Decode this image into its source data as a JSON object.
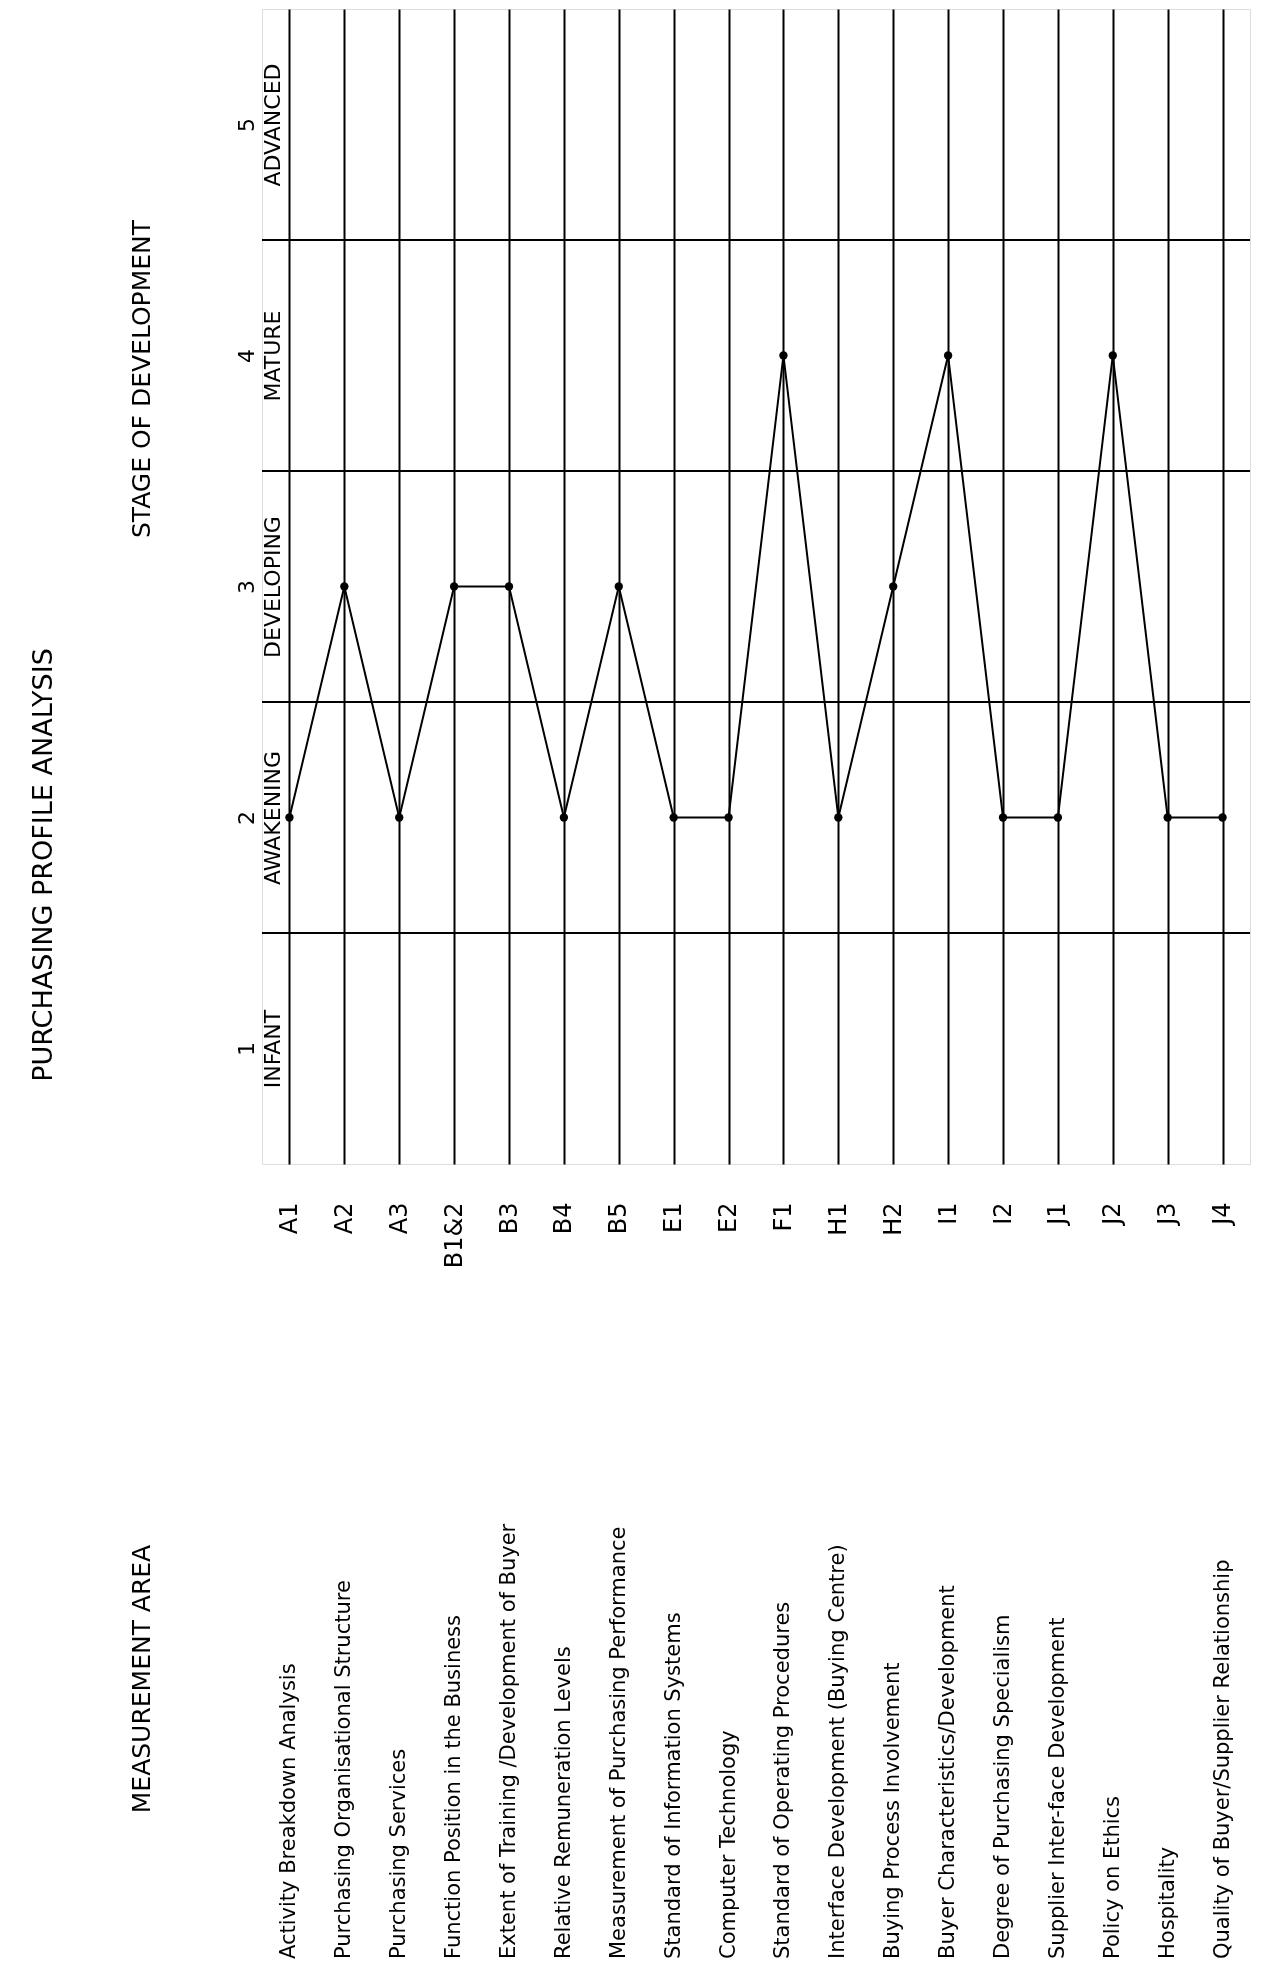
{
  "chart_data": {
    "type": "line",
    "title": "PURCHASING PROFILE ANALYSIS",
    "ylabel": "STAGE OF DEVELOPMENT",
    "categories": [
      "A1",
      "A2",
      "A3",
      "B1&2",
      "B3",
      "B4",
      "B5",
      "E1",
      "E2",
      "F1",
      "H1",
      "H2",
      "I1",
      "I2",
      "J1",
      "J2",
      "J3",
      "J4"
    ],
    "series": [
      {
        "color": "#000000",
        "values": [
          2,
          3,
          2,
          3,
          3,
          2,
          3,
          2,
          2,
          4,
          2,
          3,
          4,
          2,
          2,
          4,
          2,
          2
        ]
      }
    ],
    "annotations": [
      "Activity Breakdown Analysis",
      "Purchasing Organisational Structure",
      "Purchasing Services",
      "Function Position in the Business",
      "Extent of Training /Development of Buyer",
      "Relative Remuneration Levels",
      "Measurement of Purchasing Performance",
      "Standard of Information Systems",
      "Computer Technology",
      "Standard of Operating Procedures",
      "Interface Development (Buying Centre)",
      "Buying Process Involvement",
      "Buyer Characteristics/Development",
      "Degree of Purchasing Specialism",
      "Supplier Inter-face Development",
      "Policy on Ethics",
      "Hospitality",
      "Quality of Buyer/Supplier Relationship",
      "MEASUREMENT AREA"
    ],
    "ylim": [
      0.5,
      5.5
    ],
    "yticks": [
      {
        "value": 1,
        "label": "1 INFANT"
      },
      {
        "value": 1.5,
        "label": null
      },
      {
        "value": 2,
        "label": "2 AWAKENING"
      },
      {
        "value": 2.5,
        "label": null
      },
      {
        "value": 3,
        "label": "3 DEVELOPING"
      },
      {
        "value": 3.5,
        "label": null
      },
      {
        "value": 4,
        "label": "4 MATURE"
      },
      {
        "value": 4.5,
        "label": null
      },
      {
        "value": 5,
        "label": "5 ADVANCED"
      }
    ],
    "grid": true,
    "marker": "circle",
    "line_style": "solid"
  }
}
